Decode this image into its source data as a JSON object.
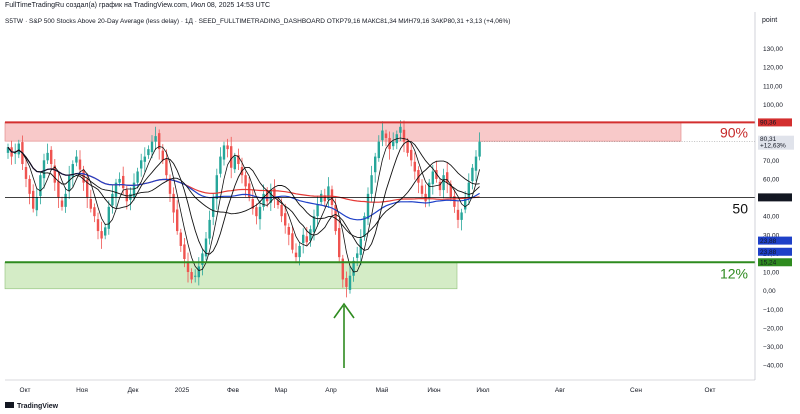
{
  "header": {
    "caption": "FullTimeTradingRu создал(а) график на TradingView.com, Июл 08, 2025 14:53 UTC"
  },
  "legend": {
    "symbol": "S5TW",
    "name": "· S&P 500 Stocks Above 20-Day Average (less delay) · 1Д · SEED_FULLTIMETRADING_DASHBOARD",
    "open_label": "ОТКР",
    "open": "79,16",
    "high_label": "МАКС",
    "high": "81,34",
    "low_label": "МИН",
    "low": "79,16",
    "close_label": "ЗАКР",
    "close": "80,31",
    "change": "+3,13 (+4,06%)"
  },
  "price_scale_mode": "point",
  "footer": {
    "logo_text": "TradingView"
  },
  "colors": {
    "candle_up": "#26a69a",
    "candle_down": "#ef5350",
    "upper_zone": "#f8c9c9",
    "upper_line": "#d32f2f",
    "lower_zone": "#d4ecc6",
    "lower_line": "#2e8b1f",
    "mid_line": "#000000",
    "ma_red": "#e53935",
    "ma_blue": "#1e40c8",
    "ma_black": "#111111",
    "arrow": "#2e8b1f"
  },
  "chart_data": {
    "type": "candlestick",
    "x_axis_labels": [
      "Окт",
      "Ноя",
      "Дек",
      "2025",
      "Фев",
      "Мар",
      "Апр",
      "Май",
      "Июн",
      "Июл",
      "Авг",
      "Сен",
      "Окт"
    ],
    "y_ticks": [
      "−40,00",
      "−30,00",
      "−20,00",
      "−10,00",
      "0,00",
      "10,00",
      "20,00",
      "30,00",
      "40,00",
      "50,00",
      "60,00",
      "70,00",
      "80,00",
      "90,00",
      "100,00",
      "110,00",
      "120,00",
      "130,00"
    ],
    "y_tick_values": [
      -40,
      -30,
      -20,
      -10,
      0,
      10,
      20,
      30,
      40,
      50,
      60,
      70,
      80,
      90,
      100,
      110,
      120,
      130
    ],
    "ylim": [
      -48,
      140
    ],
    "levels": [
      {
        "name": "upper",
        "value": 90.36,
        "zone_low": 80.31,
        "label": "90%",
        "price_tag": "90,36"
      },
      {
        "name": "middle",
        "value": 50.09,
        "label": "50",
        "price_tag": "50,09"
      },
      {
        "name": "lower",
        "value": 15.24,
        "zone_low": 1,
        "label": "12%",
        "price_tag": "15,24"
      }
    ],
    "last_price_tag": "80,31",
    "last_change_tag": "+12,63%",
    "ma_tags": [
      "23,88",
      "23,88"
    ],
    "closes": [
      77,
      72,
      74,
      79,
      68,
      60,
      52,
      44,
      50,
      62,
      70,
      74,
      68,
      58,
      50,
      45,
      52,
      62,
      68,
      72,
      65,
      58,
      50,
      44,
      40,
      32,
      28,
      34,
      45,
      52,
      58,
      60,
      55,
      48,
      52,
      58,
      64,
      70,
      72,
      76,
      80,
      83,
      76,
      70,
      62,
      52,
      42,
      32,
      24,
      17,
      10,
      6,
      8,
      13,
      20,
      28,
      38,
      50,
      62,
      72,
      78,
      76,
      66,
      72,
      68,
      62,
      56,
      50,
      44,
      40,
      45,
      52,
      48,
      54,
      50,
      46,
      40,
      35,
      30,
      22,
      18,
      24,
      30,
      26,
      33,
      40,
      46,
      52,
      48,
      56,
      46,
      32,
      18,
      6,
      2,
      8,
      16,
      20,
      28,
      40,
      52,
      62,
      72,
      80,
      86,
      82,
      76,
      80,
      84,
      88,
      80,
      74,
      70,
      64,
      58,
      52,
      48,
      58,
      64,
      60,
      54,
      62,
      58,
      50,
      45,
      38,
      42,
      50,
      58,
      66,
      72,
      80
    ]
  }
}
